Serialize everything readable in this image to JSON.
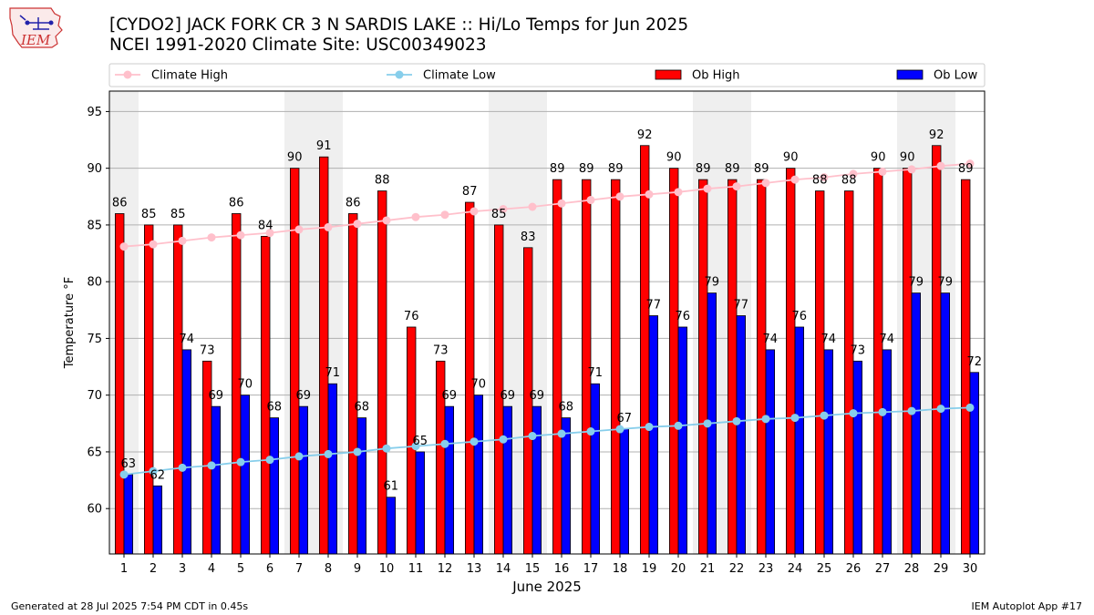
{
  "header": {
    "logo_text": "IEM",
    "title": "[CYDO2] JACK FORK CR 3 N SARDIS LAKE :: Hi/Lo Temps for Jun 2025",
    "subtitle": "NCEI 1991-2020 Climate Site: USC00349023"
  },
  "footer": {
    "generated": "Generated at 28 Jul 2025 7:54 PM CDT in 0.45s",
    "app": "IEM Autoplot App #17"
  },
  "chart_data": {
    "type": "bar",
    "xlabel": "June 2025",
    "ylabel": "Temperature °F",
    "ylim": [
      56.0,
      96.8
    ],
    "yticks": [
      60,
      65,
      70,
      75,
      80,
      85,
      90,
      95
    ],
    "grid": "horizontal",
    "legend_position": "top",
    "categories": [
      "1",
      "2",
      "3",
      "4",
      "5",
      "6",
      "7",
      "8",
      "9",
      "10",
      "11",
      "12",
      "13",
      "14",
      "15",
      "16",
      "17",
      "18",
      "19",
      "20",
      "21",
      "22",
      "23",
      "24",
      "25",
      "26",
      "27",
      "28",
      "29",
      "30"
    ],
    "weekend_days": [
      1,
      7,
      8,
      14,
      15,
      21,
      22,
      28,
      29
    ],
    "series": [
      {
        "name": "Ob High",
        "kind": "bar",
        "color": "#ff0000",
        "values": [
          86,
          85,
          85,
          73,
          86,
          84,
          90,
          91,
          86,
          88,
          76,
          73,
          87,
          85,
          83,
          89,
          89,
          89,
          92,
          90,
          89,
          89,
          89,
          90,
          88,
          88,
          90,
          90,
          92,
          89
        ],
        "labels": [
          "86",
          "85",
          "85",
          "73",
          "86",
          "84",
          "90",
          "91",
          "86",
          "88",
          "76",
          "73",
          "87",
          "85",
          "83",
          "89",
          "89",
          "89",
          "92",
          "90",
          "89",
          "89",
          "89",
          "90",
          "88",
          "88",
          "90",
          "90",
          "92",
          "89"
        ]
      },
      {
        "name": "Ob Low",
        "kind": "bar",
        "color": "#0000ff",
        "values": [
          63,
          62,
          74,
          69,
          70,
          68,
          69,
          71,
          68,
          61,
          65,
          69,
          70,
          69,
          69,
          68,
          71,
          67,
          77,
          76,
          79,
          77,
          74,
          76,
          74,
          73,
          74,
          79,
          79,
          72
        ],
        "labels": [
          "63",
          "62",
          "74",
          "69",
          "70",
          "68",
          "69",
          "71",
          "68",
          "61",
          "65",
          "69",
          "70",
          "69",
          "69",
          "68",
          "71",
          "67",
          "77",
          "76",
          "79",
          "77",
          "74",
          "76",
          "74",
          "73",
          "74",
          "79",
          "79",
          "72"
        ]
      },
      {
        "name": "Climate High",
        "kind": "line",
        "color": "#ffc0cb",
        "values": [
          83.1,
          83.3,
          83.6,
          83.9,
          84.1,
          84.3,
          84.6,
          84.8,
          85.1,
          85.4,
          85.7,
          85.9,
          86.2,
          86.4,
          86.6,
          86.9,
          87.2,
          87.5,
          87.7,
          87.9,
          88.2,
          88.4,
          88.7,
          89.0,
          89.2,
          89.5,
          89.7,
          89.9,
          90.2,
          90.4
        ]
      },
      {
        "name": "Climate Low",
        "kind": "line",
        "color": "#87ceeb",
        "values": [
          63.0,
          63.3,
          63.6,
          63.8,
          64.1,
          64.3,
          64.6,
          64.8,
          65.0,
          65.3,
          65.5,
          65.7,
          65.9,
          66.1,
          66.4,
          66.6,
          66.8,
          67.0,
          67.2,
          67.3,
          67.5,
          67.7,
          67.9,
          68.0,
          68.2,
          68.4,
          68.5,
          68.6,
          68.8,
          68.9
        ]
      }
    ]
  }
}
